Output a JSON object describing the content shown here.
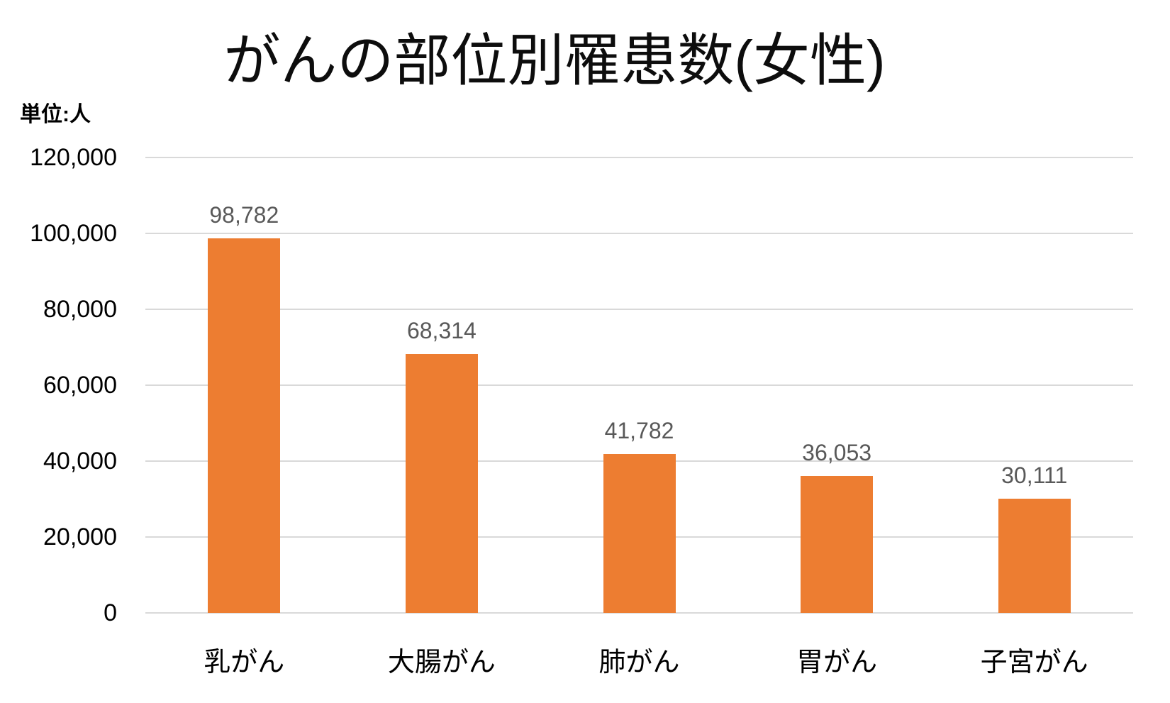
{
  "chart_data": {
    "type": "bar",
    "title": "がんの部位別罹患数(女性)",
    "unit_label": "単位:人",
    "categories": [
      "乳がん",
      "大腸がん",
      "肺がん",
      "胃がん",
      "子宮がん"
    ],
    "values": [
      98782,
      68314,
      41782,
      36053,
      30111
    ],
    "value_labels": [
      "98,782",
      "68,314",
      "41,782",
      "36,053",
      "30,111"
    ],
    "y_ticks": [
      {
        "value": 120000,
        "label": "120,000"
      },
      {
        "value": 100000,
        "label": "100,000"
      },
      {
        "value": 80000,
        "label": "80,000"
      },
      {
        "value": 60000,
        "label": "60,000"
      },
      {
        "value": 40000,
        "label": "40,000"
      },
      {
        "value": 20000,
        "label": "20,000"
      },
      {
        "value": 0,
        "label": "0"
      }
    ],
    "ylim": [
      0,
      120000
    ],
    "xlabel": "",
    "ylabel": "",
    "grid": true,
    "legend": "none",
    "colors": {
      "bar": "#ED7D31",
      "gridline": "#D9D9D9",
      "value_label": "#595959",
      "axis_text": "#000000",
      "title_text": "#0d0d0d",
      "background": "#FFFFFF"
    }
  }
}
